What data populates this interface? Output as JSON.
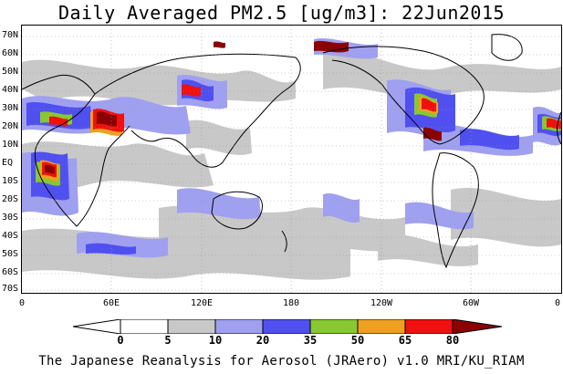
{
  "title": "Daily Averaged PM2.5 [ug/m3]: 22Jun2015",
  "footer": "The Japanese Reanalysis for Aerosol (JRAero) v1.0 MRI/KU_RIAM",
  "lat_labels": [
    "70N",
    "60N",
    "50N",
    "40N",
    "30N",
    "20N",
    "10N",
    "EQ",
    "10S",
    "20S",
    "30S",
    "40S",
    "50S",
    "60S",
    "70S"
  ],
  "lon_labels": [
    "0",
    "60E",
    "120E",
    "180",
    "120W",
    "60W",
    "0"
  ],
  "colorbar": {
    "labels": [
      "0",
      "5",
      "10",
      "20",
      "35",
      "50",
      "65",
      "80"
    ],
    "colors": [
      "#ffffff",
      "#ffffff",
      "#c8c8c8",
      "#a0a0f0",
      "#5050f0",
      "#88c830",
      "#f0a020",
      "#f01010",
      "#8b0000"
    ]
  },
  "layers": {
    "land_outline_color": "#000000",
    "grid_color": "#999999"
  }
}
